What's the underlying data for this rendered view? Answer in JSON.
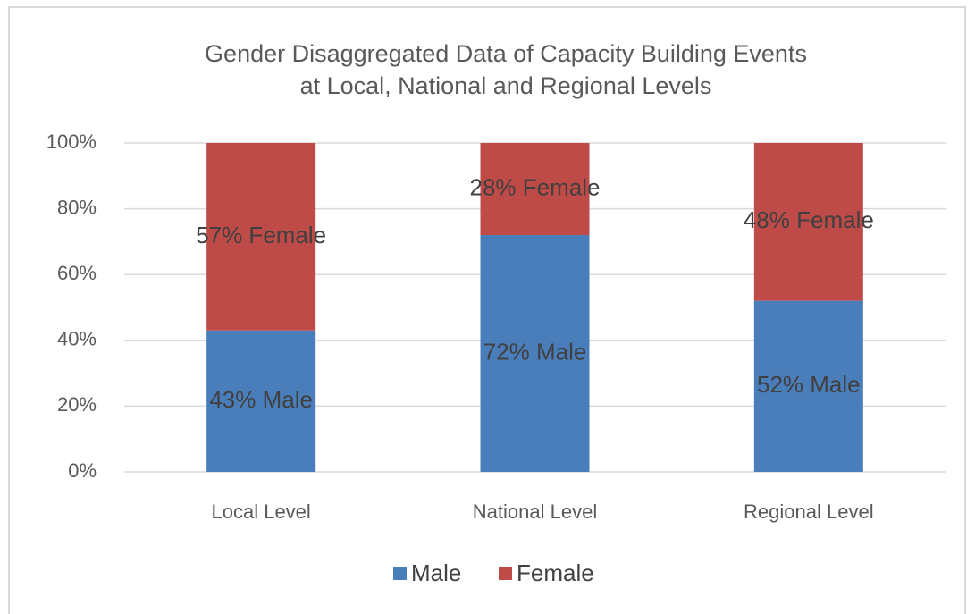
{
  "chart_data": {
    "type": "stacked_bar",
    "title": [
      "Gender Disaggregated Data of Capacity Building Events",
      "at Local, National and Regional Levels"
    ],
    "categories": [
      "Local Level",
      "National Level",
      "Regional Level"
    ],
    "series": [
      {
        "name": "Male",
        "color": "#4a7ebb",
        "values": [
          43,
          72,
          52
        ],
        "value_labels": [
          "43% Male",
          "72% Male",
          "52% Male"
        ]
      },
      {
        "name": "Female",
        "color": "#be4b48",
        "values": [
          57,
          28,
          48
        ],
        "value_labels": [
          "57% Female",
          "28% Female",
          "48% Female"
        ]
      }
    ],
    "ylim": [
      0,
      100
    ],
    "yticks": [
      {
        "value": 0,
        "label": "0%"
      },
      {
        "value": 20,
        "label": "20%"
      },
      {
        "value": 40,
        "label": "40%"
      },
      {
        "value": 60,
        "label": "60%"
      },
      {
        "value": 80,
        "label": "80%"
      },
      {
        "value": 100,
        "label": "100%"
      }
    ],
    "grid": true,
    "legend": "bottom"
  }
}
